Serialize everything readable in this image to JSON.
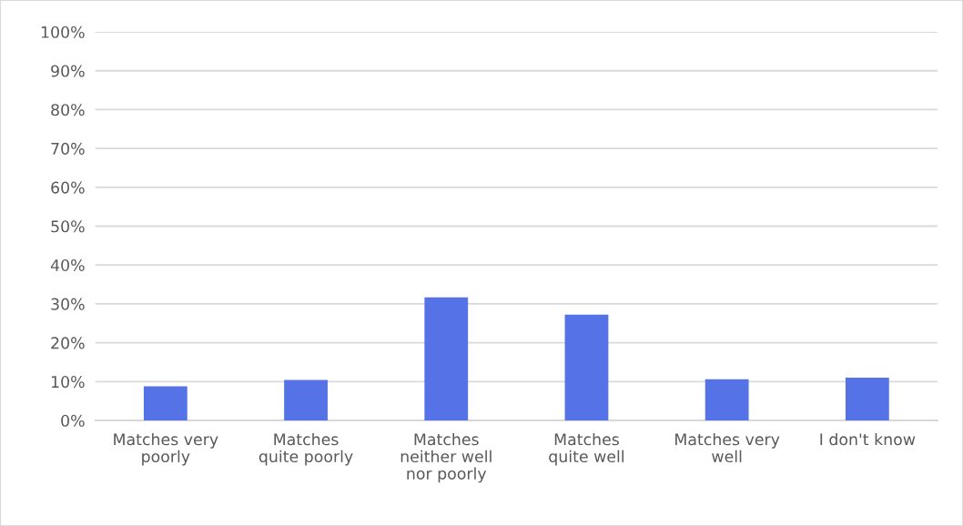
{
  "chart_data": {
    "type": "bar",
    "categories": [
      "Matches very\npoorly",
      "Matches\nquite poorly",
      "Matches\nneither well\nnor poorly",
      "Matches\nquite well",
      "Matches very\nwell",
      "I don't know"
    ],
    "values": [
      8.8,
      10.4,
      31.7,
      27.2,
      10.6,
      11.0
    ],
    "color": "#5573e6",
    "ylim": [
      0,
      100
    ],
    "yticks": [
      {
        "value": 0,
        "label": "0%"
      },
      {
        "value": 10,
        "label": "10%"
      },
      {
        "value": 20,
        "label": "20%"
      },
      {
        "value": 30,
        "label": "30%"
      },
      {
        "value": 40,
        "label": "40%"
      },
      {
        "value": 50,
        "label": "50%"
      },
      {
        "value": 60,
        "label": "60%"
      },
      {
        "value": 70,
        "label": "70%"
      },
      {
        "value": 80,
        "label": "80%"
      },
      {
        "value": 90,
        "label": "90%"
      },
      {
        "value": 100,
        "label": "100%"
      }
    ],
    "grid": "y",
    "legend": false
  }
}
